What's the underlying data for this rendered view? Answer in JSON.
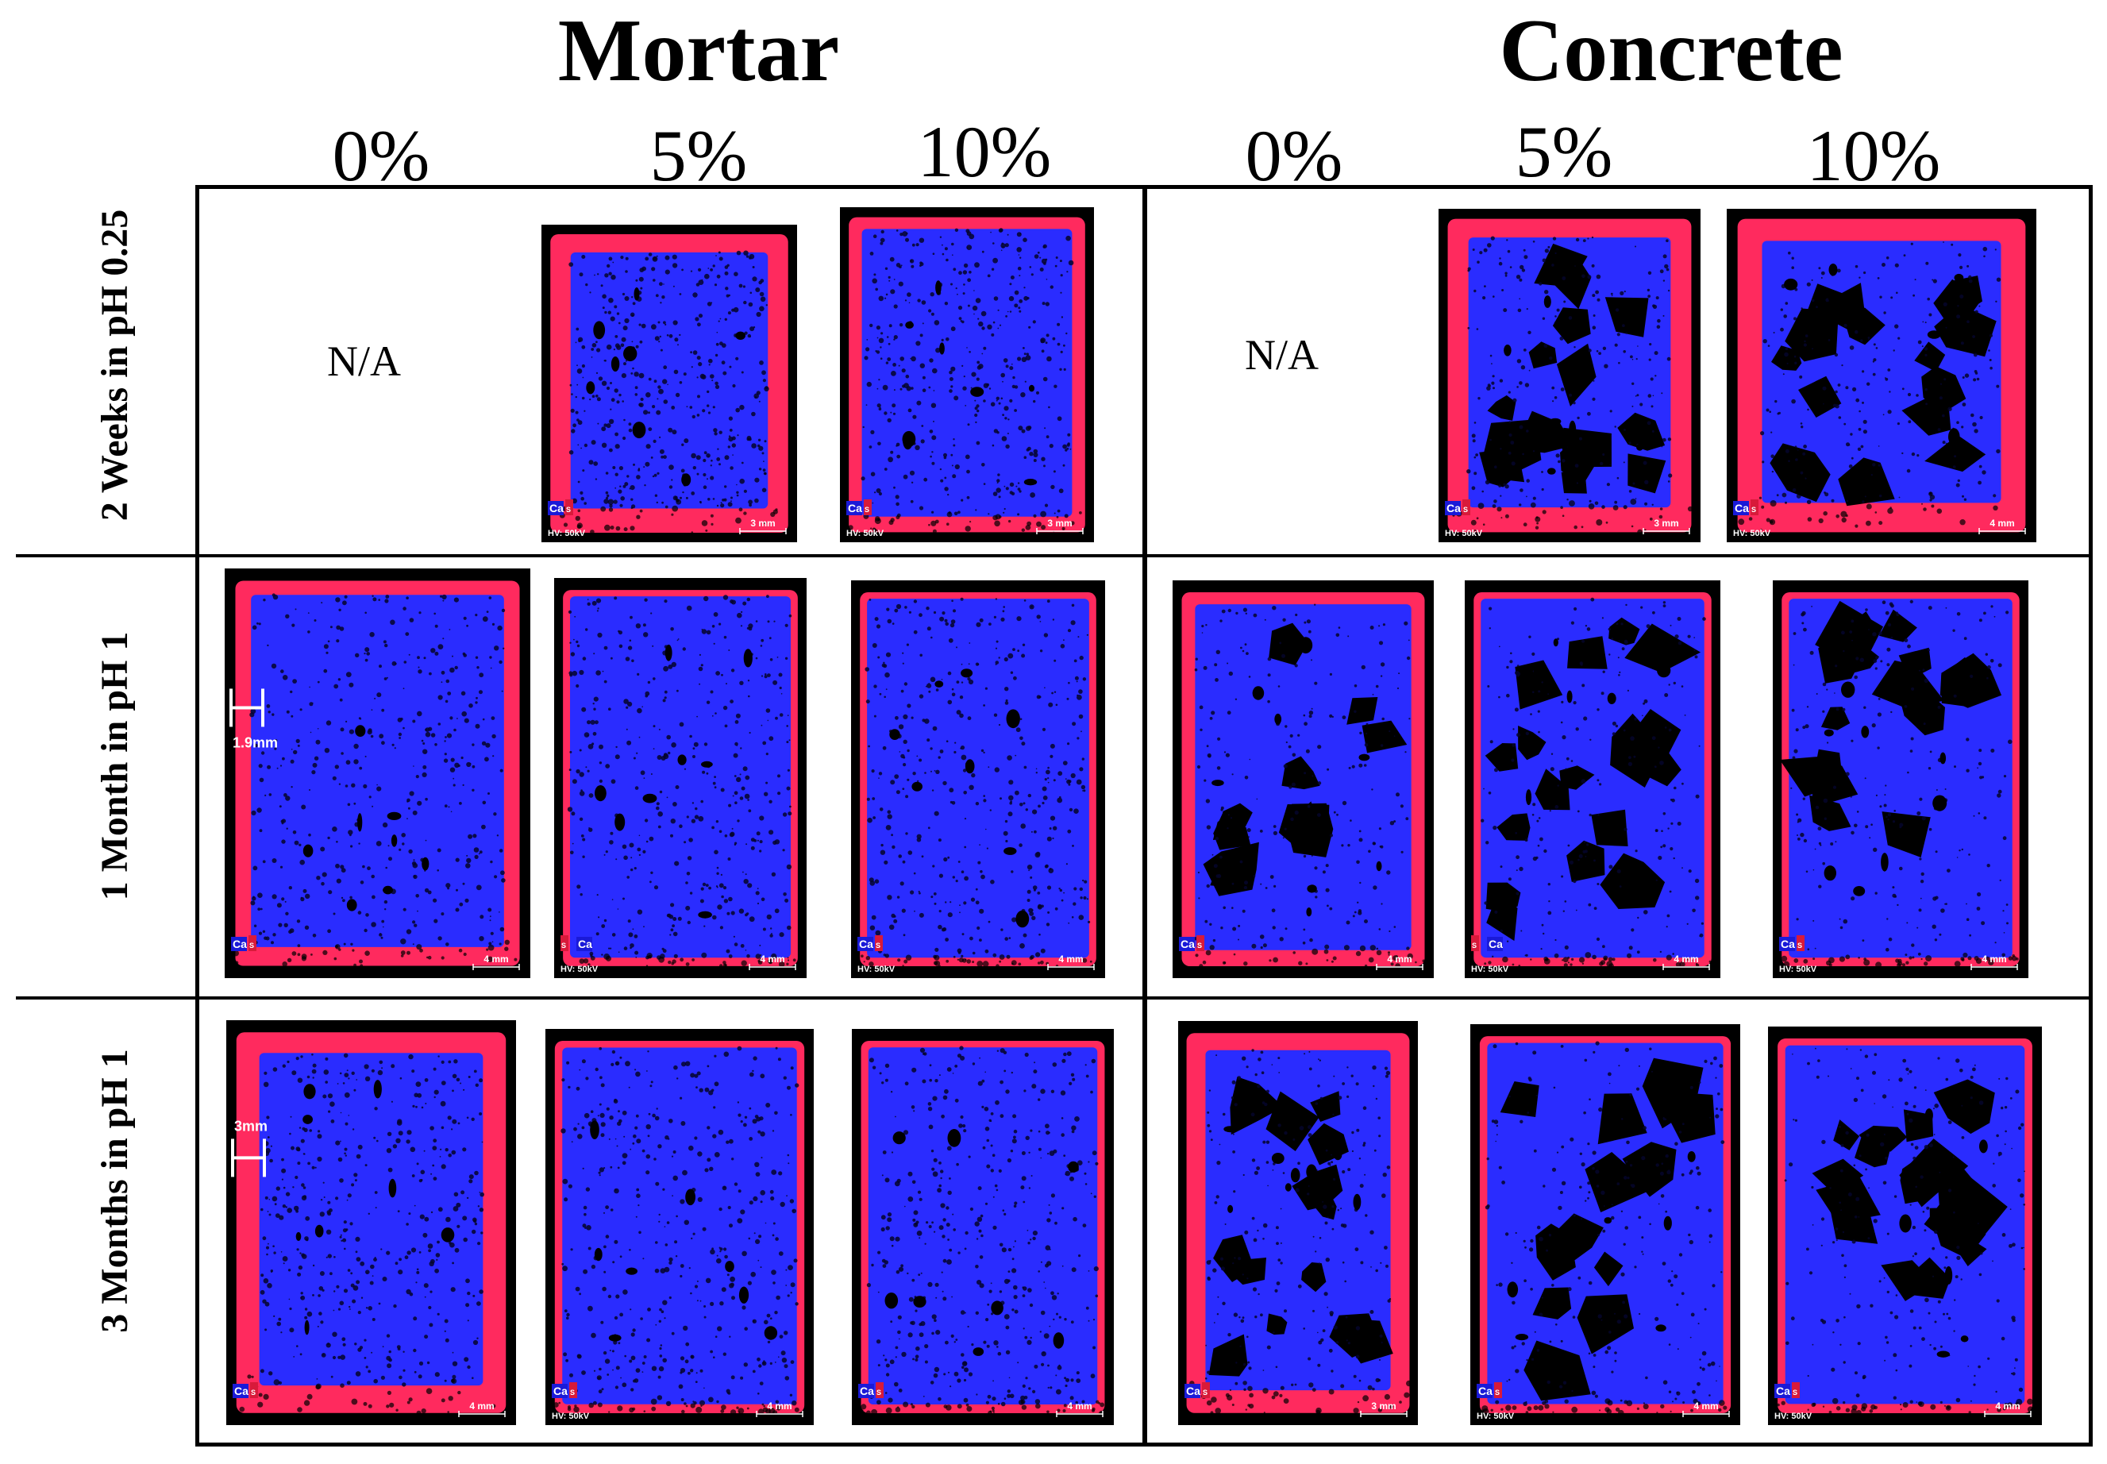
{
  "groups": [
    {
      "title": "Mortar",
      "percentages": [
        "0%",
        "5%",
        "10%"
      ]
    },
    {
      "title": "Concrete",
      "percentages": [
        "0%",
        "5%",
        "10%"
      ]
    }
  ],
  "rows": [
    {
      "label": "2 Weeks in pH 0.25"
    },
    {
      "label": "1 Month in pH 1"
    },
    {
      "label": "3 Months in pH 1"
    }
  ],
  "na_text": "N/A",
  "element_labels": {
    "calcium": "Ca",
    "sulfur": "S"
  },
  "hv_label": "HV: 50kV",
  "colors": {
    "calcium": "#2a2cff",
    "sulfur": "#ff2a5e",
    "background": "#000000",
    "frame": "#000000"
  },
  "tiles": [
    {
      "id": "m0-r0",
      "group": "mortar",
      "pct": "0%",
      "row": 0,
      "na": true
    },
    {
      "id": "m5-r0",
      "group": "mortar",
      "pct": "5%",
      "row": 0,
      "scale": "3 mm",
      "hv": true,
      "ca_pos": "left",
      "texture": "mortar",
      "rim": "heavy"
    },
    {
      "id": "m10-r0",
      "group": "mortar",
      "pct": "10%",
      "row": 0,
      "scale": "3 mm",
      "hv": true,
      "ca_pos": "left",
      "texture": "mortar",
      "rim": "medium"
    },
    {
      "id": "c0-r0",
      "group": "concrete",
      "pct": "0%",
      "row": 0,
      "na": true
    },
    {
      "id": "c5-r0",
      "group": "concrete",
      "pct": "5%",
      "row": 0,
      "scale": "3 mm",
      "hv": true,
      "ca_pos": "left",
      "texture": "concrete",
      "rim": "heavy"
    },
    {
      "id": "c10-r0",
      "group": "concrete",
      "pct": "10%",
      "row": 0,
      "scale": "4 mm",
      "hv": true,
      "ca_pos": "left",
      "texture": "concrete",
      "rim": "heavy"
    },
    {
      "id": "m0-r1",
      "group": "mortar",
      "pct": "0%",
      "row": 1,
      "scale": "4 mm",
      "hv": false,
      "ca_pos": "left",
      "texture": "mortar",
      "rim": "medium",
      "measure": "1.9mm"
    },
    {
      "id": "m5-r1",
      "group": "mortar",
      "pct": "5%",
      "row": 1,
      "scale": "4 mm",
      "hv": true,
      "ca_pos": "right",
      "texture": "mortar",
      "rim": "light"
    },
    {
      "id": "m10-r1",
      "group": "mortar",
      "pct": "10%",
      "row": 1,
      "scale": "4 mm",
      "hv": true,
      "ca_pos": "left",
      "texture": "mortar",
      "rim": "light"
    },
    {
      "id": "c0-r1",
      "group": "concrete",
      "pct": "0%",
      "row": 1,
      "scale": "4 mm",
      "hv": false,
      "ca_pos": "left",
      "texture": "concrete",
      "rim": "medium"
    },
    {
      "id": "c5-r1",
      "group": "concrete",
      "pct": "5%",
      "row": 1,
      "scale": "4 mm",
      "hv": true,
      "ca_pos": "right",
      "texture": "concrete",
      "rim": "light"
    },
    {
      "id": "c10-r1",
      "group": "concrete",
      "pct": "10%",
      "row": 1,
      "scale": "4 mm",
      "hv": true,
      "ca_pos": "left",
      "texture": "concrete",
      "rim": "light"
    },
    {
      "id": "m0-r2",
      "group": "mortar",
      "pct": "0%",
      "row": 2,
      "scale": "4 mm",
      "hv": false,
      "ca_pos": "left",
      "texture": "mortar",
      "rim": "heavy",
      "measure": "3mm"
    },
    {
      "id": "m5-r2",
      "group": "mortar",
      "pct": "5%",
      "row": 2,
      "scale": "4 mm",
      "hv": true,
      "ca_pos": "left",
      "texture": "mortar",
      "rim": "light"
    },
    {
      "id": "m10-r2",
      "group": "mortar",
      "pct": "10%",
      "row": 2,
      "scale": "4 mm",
      "hv": false,
      "ca_pos": "left",
      "texture": "mortar",
      "rim": "light"
    },
    {
      "id": "c0-r2",
      "group": "concrete",
      "pct": "0%",
      "row": 2,
      "scale": "3 mm",
      "hv": false,
      "ca_pos": "left",
      "texture": "concrete",
      "rim": "heavy"
    },
    {
      "id": "c5-r2",
      "group": "concrete",
      "pct": "5%",
      "row": 2,
      "scale": "4 mm",
      "hv": true,
      "ca_pos": "left",
      "texture": "concrete",
      "rim": "light"
    },
    {
      "id": "c10-r2",
      "group": "concrete",
      "pct": "10%",
      "row": 2,
      "scale": "4 mm",
      "hv": true,
      "ca_pos": "left",
      "texture": "concrete",
      "rim": "light"
    }
  ]
}
